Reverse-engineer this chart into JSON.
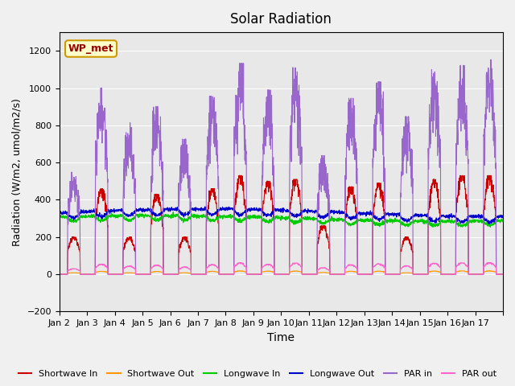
{
  "title": "Solar Radiation",
  "xlabel": "Time",
  "ylabel": "Radiation (W/m2, umol/m2/s)",
  "ylim": [
    -200,
    1300
  ],
  "yticks": [
    -200,
    0,
    200,
    400,
    600,
    800,
    1000,
    1200
  ],
  "xlim": [
    0,
    16
  ],
  "xtick_positions": [
    0,
    1,
    2,
    3,
    4,
    5,
    6,
    7,
    8,
    9,
    10,
    11,
    12,
    13,
    14,
    15,
    16
  ],
  "xtick_labels": [
    "Jan 2",
    "Jan 3",
    "Jan 4",
    "Jan 5",
    "Jan 6",
    "Jan 7",
    "Jan 8",
    "Jan 9",
    "Jan 10",
    "Jan 11",
    "Jan 12",
    "Jan 13",
    "Jan 14",
    "Jan 15",
    "Jan 16",
    "Jan 17",
    ""
  ],
  "station_label": "WP_met",
  "station_label_bg": "#FFFFCC",
  "station_label_border": "#CC9900",
  "station_label_color": "#990000",
  "colors": {
    "shortwave_in": "#CC0000",
    "shortwave_out": "#FF9900",
    "longwave_in": "#00CC00",
    "longwave_out": "#0000CC",
    "par_in": "#9966CC",
    "par_out": "#FF66CC"
  },
  "axes_bg": "#E8E8E8",
  "grid_color": "#FFFFFF",
  "n_days": 16,
  "pts_per_day": 144,
  "par_peaks": [
    500,
    910,
    740,
    820,
    660,
    870,
    1030,
    900,
    1010,
    580,
    860,
    940,
    770,
    1000,
    1020,
    1050
  ],
  "sw_peaks": [
    200,
    460,
    200,
    430,
    200,
    460,
    530,
    500,
    510,
    260,
    470,
    490,
    200,
    510,
    530,
    530
  ]
}
